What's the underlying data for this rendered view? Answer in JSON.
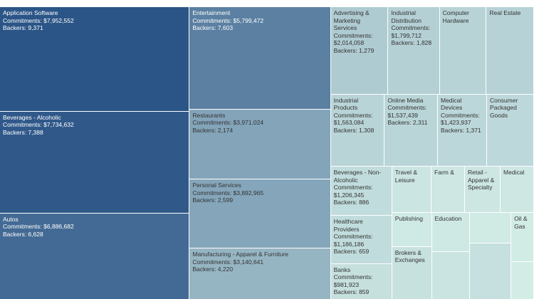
{
  "chart_data": {
    "type": "treemap",
    "categories": [
      "Application Software",
      "Beverages - Alcoholic",
      "Autos",
      "Entertainment",
      "Restaurants",
      "Personal Services",
      "Manufacturing - Apparel & Furniture",
      "Advertising & Marketing Services",
      "Industrial Distribution",
      "Computer Hardware",
      "Real Estate",
      "Industrial Products",
      "Online Media",
      "Medical Devices",
      "Consumer Packaged Goods",
      "Beverages - Non-Alcoholic",
      "Healthcare Providers",
      "Banks",
      "Travel & Leisure",
      "Farm &",
      "Retail - Apparel & Specialty",
      "Medical",
      "Publishing",
      "Brokers & Exchanges",
      "Education",
      null,
      null,
      null,
      "Oil & Gas",
      null
    ],
    "series": [
      {
        "name": "Commitments",
        "values": [
          7952552,
          7734632,
          6886682,
          5799472,
          3971024,
          3892965,
          3140641,
          2014058,
          1799712,
          1640000,
          1660000,
          1563084,
          1537439,
          1423937,
          1360000,
          1206345,
          1186186,
          981923,
          730000,
          620000,
          660000,
          620000,
          540000,
          910000,
          600000,
          800000,
          500000,
          1000000,
          450000,
          380000
        ],
        "value_labels": [
          "Commitments: $7,952,552",
          "Commitments: $7,734,632",
          "Commitments: $6,886,682",
          "Commitments: $5,799,472",
          "Commitments: $3,971,024",
          "Commitments: $3,892,965",
          "Commitments: $3,140,641",
          "Commitments: $2,014,058",
          "Commitments: $1,799,712",
          null,
          null,
          "Commitments: $1,563,084",
          "Commitments: $1,537,439",
          "Commitments: $1,423,937",
          null,
          "Commitments: $1,206,345",
          "Commitments: $1,186,186",
          "Commitments: $981,923",
          null,
          null,
          null,
          null,
          null,
          null,
          null,
          null,
          null,
          null,
          null,
          null
        ]
      },
      {
        "name": "Backers",
        "values": [
          9371,
          7388,
          6628,
          7603,
          2174,
          2599,
          4220,
          1279,
          1828,
          null,
          null,
          1308,
          2311,
          1371,
          null,
          886,
          659,
          859,
          null,
          null,
          null,
          null,
          null,
          null,
          null,
          null,
          null,
          null,
          null,
          null
        ],
        "value_labels": [
          "Backers: 9,371",
          "Backers: 7,388",
          "Backers: 6,628",
          "Backers: 7,603",
          "Backers: 2,174",
          "Backers: 2,599",
          "Backers: 4,220",
          "Backers: 1,279",
          "Backers: 1,828",
          null,
          null,
          "Backers: 1,308",
          "Backers: 2,311",
          "Backers: 1,371",
          null,
          "Backers: 886",
          "Backers: 659",
          "Backers: 859",
          null,
          null,
          null,
          null,
          null,
          null,
          null,
          null,
          null,
          null,
          null,
          null
        ]
      }
    ],
    "color_scale": [
      "#d3ece6",
      "#2b5587"
    ]
  }
}
